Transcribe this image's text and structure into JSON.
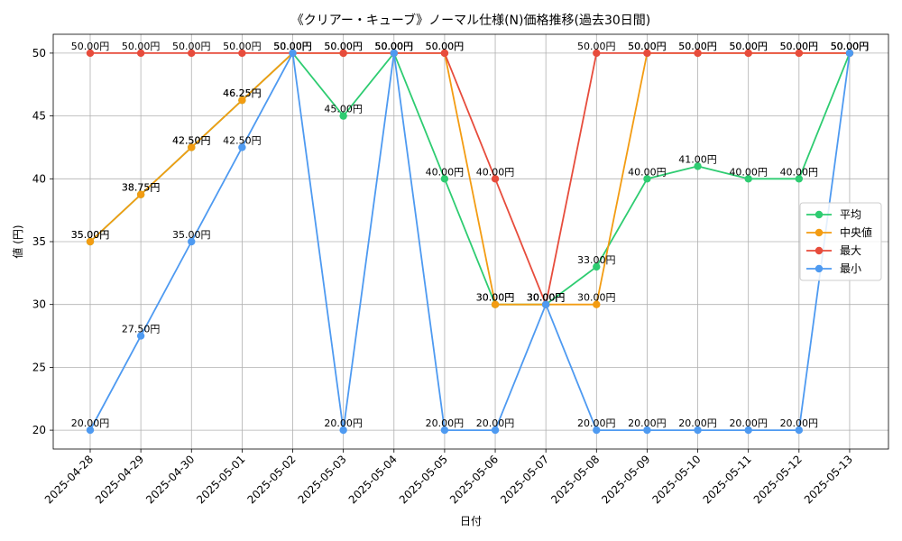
{
  "chart_data": {
    "type": "line",
    "title": "《クリアー・キューブ》ノーマル仕様(N)価格推移(過去30日間)",
    "xlabel": "日付",
    "ylabel": "値 (円)",
    "ylim": [
      18.5,
      51.5
    ],
    "yticks": [
      20,
      25,
      30,
      35,
      40,
      45,
      50
    ],
    "grid": true,
    "legend_position": "right",
    "label_suffix": "円",
    "categories": [
      "2025-04-28",
      "2025-04-29",
      "2025-04-30",
      "2025-05-01",
      "2025-05-02",
      "2025-05-03",
      "2025-05-04",
      "2025-05-05",
      "2025-05-06",
      "2025-05-07",
      "2025-05-08",
      "2025-05-09",
      "2025-05-10",
      "2025-05-11",
      "2025-05-12",
      "2025-05-13"
    ],
    "series": [
      {
        "name": "平均",
        "color": "#2ecc71",
        "values": [
          35.0,
          38.75,
          42.5,
          46.25,
          50.0,
          45.0,
          50.0,
          40.0,
          30.0,
          30.0,
          33.0,
          40.0,
          41.0,
          40.0,
          40.0,
          50.0
        ]
      },
      {
        "name": "中央値",
        "color": "#f39c12",
        "values": [
          35.0,
          38.75,
          42.5,
          46.25,
          50.0,
          50.0,
          50.0,
          50.0,
          30.0,
          30.0,
          30.0,
          50.0,
          50.0,
          50.0,
          50.0,
          50.0
        ]
      },
      {
        "name": "最大",
        "color": "#e74c3c",
        "values": [
          50.0,
          50.0,
          50.0,
          50.0,
          50.0,
          50.0,
          50.0,
          50.0,
          40.0,
          30.0,
          50.0,
          50.0,
          50.0,
          50.0,
          50.0,
          50.0
        ]
      },
      {
        "name": "最小",
        "color": "#4e9af1",
        "values": [
          20.0,
          27.5,
          35.0,
          42.5,
          50.0,
          20.0,
          50.0,
          20.0,
          20.0,
          30.0,
          20.0,
          20.0,
          20.0,
          20.0,
          20.0,
          50.0
        ]
      }
    ]
  }
}
